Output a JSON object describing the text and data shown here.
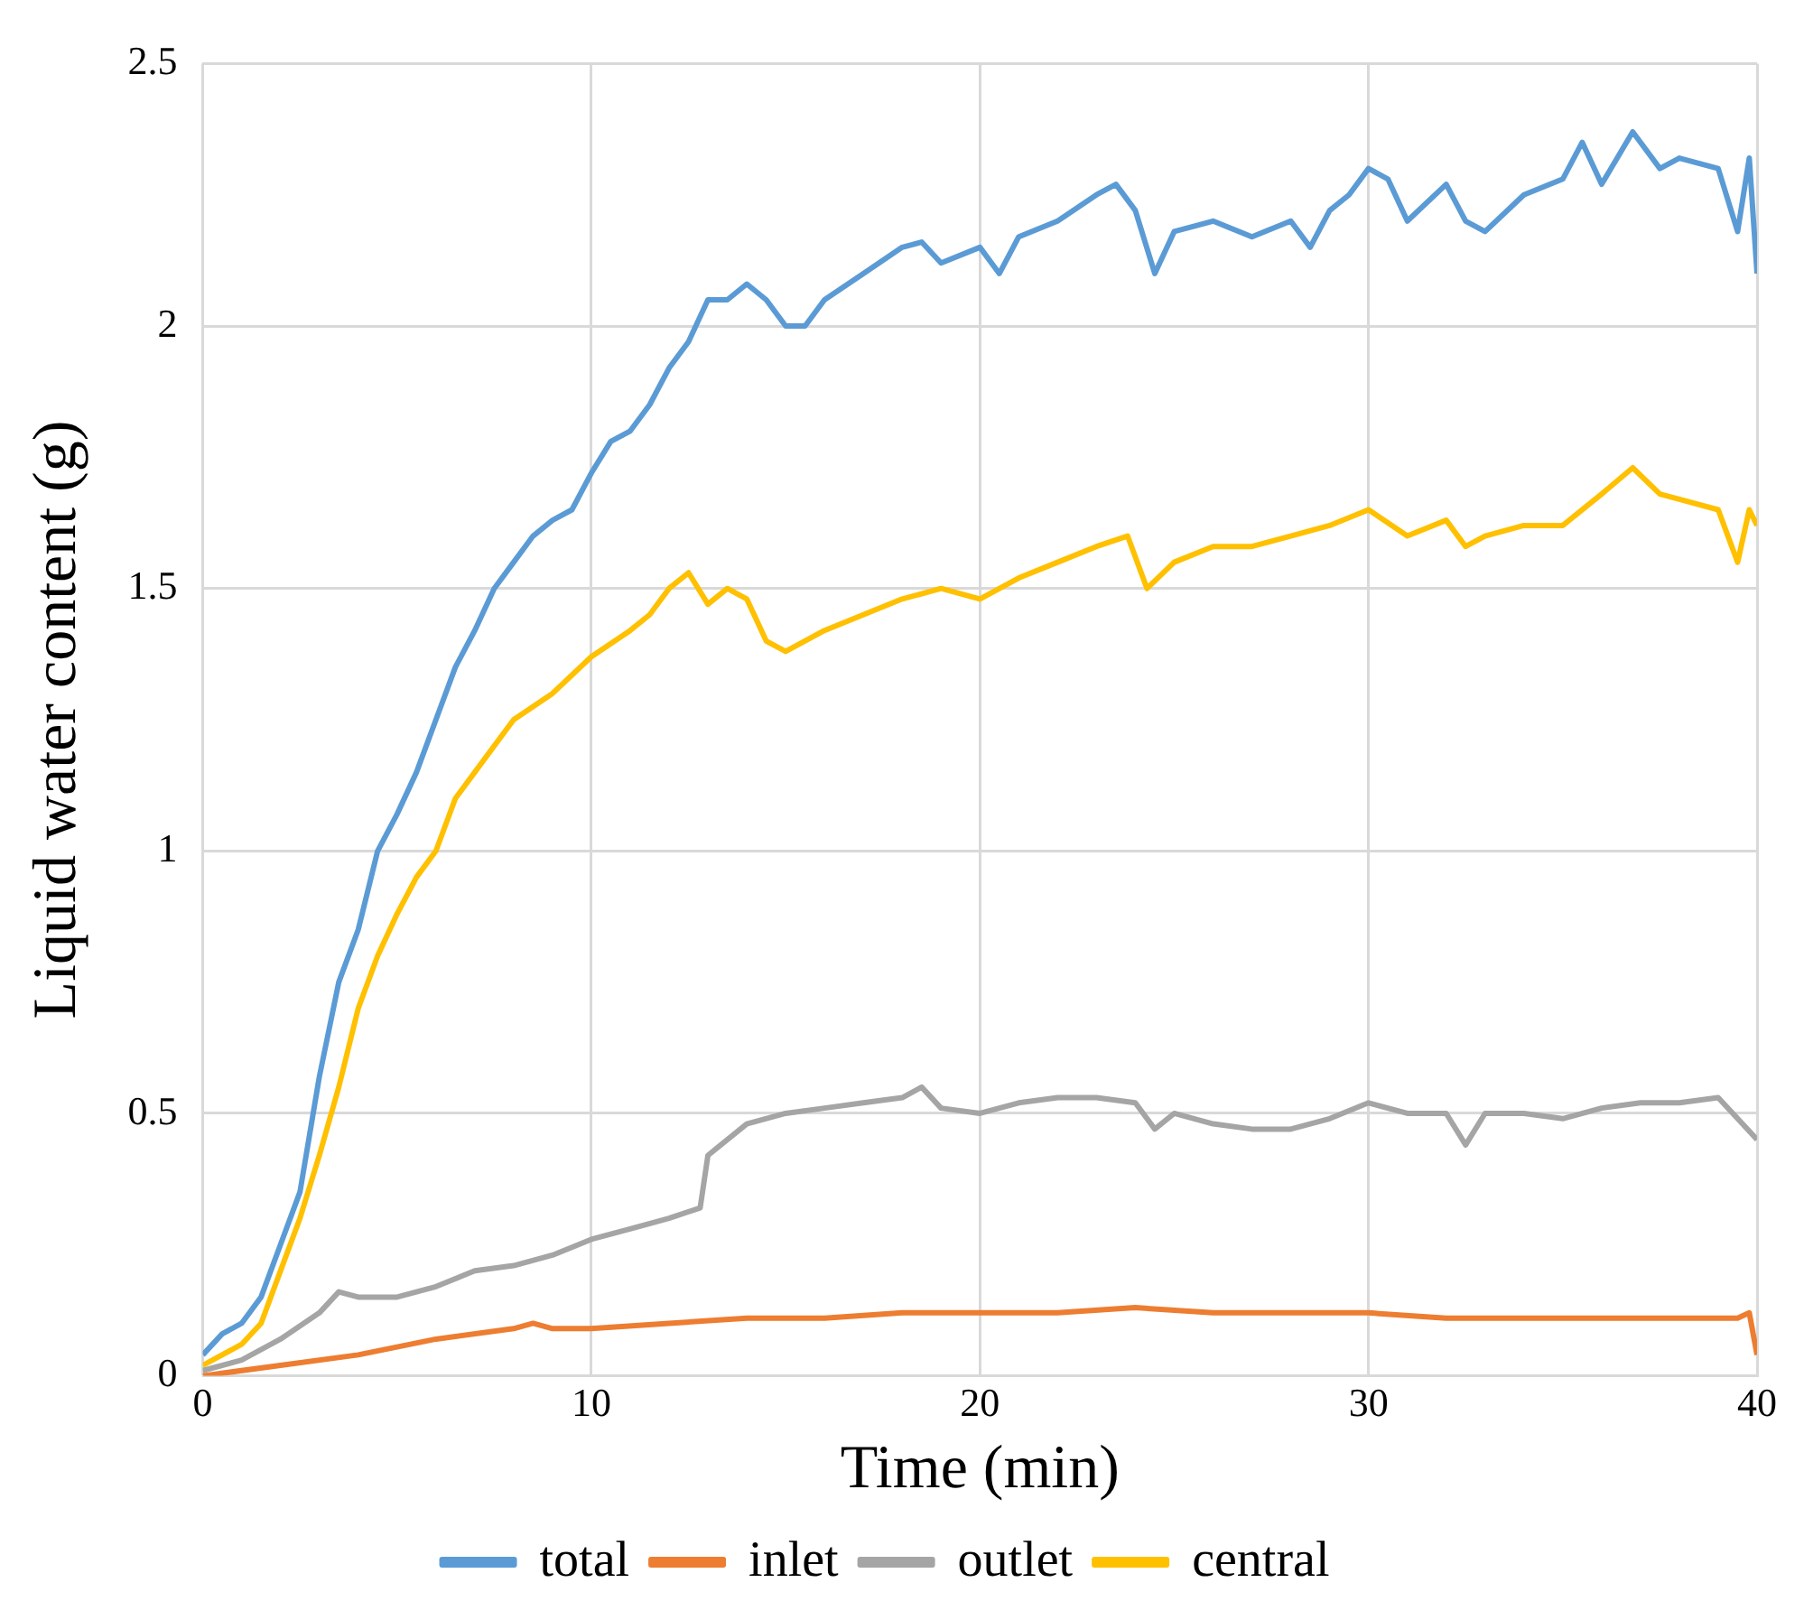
{
  "chart_data": {
    "type": "line",
    "xlabel": "Time (min)",
    "ylabel": "Liquid water content (g)",
    "xlim": [
      0,
      40
    ],
    "xticks": [
      0,
      10,
      20,
      30,
      40
    ],
    "ylim": [
      0,
      2.5
    ],
    "yticks": [
      0,
      0.5,
      1,
      1.5,
      2,
      2.5
    ],
    "grid": true,
    "legend": "bottom",
    "marker": "none",
    "line_style": "solid",
    "series": [
      {
        "name": "total",
        "color": "#5b9bd5",
        "x": [
          0,
          0.5,
          1,
          1.5,
          2,
          2.5,
          3,
          3.5,
          4,
          4.5,
          5,
          5.5,
          6,
          6.5,
          7,
          7.5,
          8,
          8.5,
          9,
          9.5,
          10,
          10.5,
          11,
          11.5,
          12,
          12.5,
          13,
          13.5,
          14,
          14.5,
          15,
          15.5,
          16,
          17,
          18,
          18.5,
          19,
          20,
          20.5,
          21,
          22,
          23,
          23.5,
          24,
          24.5,
          25,
          26,
          27,
          28,
          28.5,
          29,
          29.5,
          30,
          30.5,
          31,
          32,
          32.5,
          33,
          34,
          35,
          35.5,
          36,
          36.8,
          37.5,
          38,
          39,
          39.5,
          39.8,
          40
        ],
        "values": [
          0.04,
          0.08,
          0.1,
          0.15,
          0.25,
          0.35,
          0.57,
          0.75,
          0.85,
          1.0,
          1.07,
          1.15,
          1.25,
          1.35,
          1.42,
          1.5,
          1.55,
          1.6,
          1.63,
          1.65,
          1.72,
          1.78,
          1.8,
          1.85,
          1.92,
          1.97,
          2.05,
          2.05,
          2.08,
          2.05,
          2.0,
          2.0,
          2.05,
          2.1,
          2.15,
          2.16,
          2.12,
          2.15,
          2.1,
          2.17,
          2.2,
          2.25,
          2.27,
          2.22,
          2.1,
          2.18,
          2.2,
          2.17,
          2.2,
          2.15,
          2.22,
          2.25,
          2.3,
          2.28,
          2.2,
          2.27,
          2.2,
          2.18,
          2.25,
          2.28,
          2.35,
          2.27,
          2.37,
          2.3,
          2.32,
          2.3,
          2.18,
          2.32,
          2.1
        ]
      },
      {
        "name": "inlet",
        "color": "#ed7d31",
        "x": [
          0,
          2,
          4,
          6,
          8,
          8.5,
          9,
          10,
          12,
          14,
          16,
          18,
          20,
          22,
          24,
          26,
          28,
          30,
          32,
          34,
          36,
          38,
          39.5,
          39.8,
          40
        ],
        "values": [
          0,
          0.02,
          0.04,
          0.07,
          0.09,
          0.1,
          0.09,
          0.09,
          0.1,
          0.11,
          0.11,
          0.12,
          0.12,
          0.12,
          0.13,
          0.12,
          0.12,
          0.12,
          0.11,
          0.11,
          0.11,
          0.11,
          0.11,
          0.12,
          0.04
        ]
      },
      {
        "name": "outlet",
        "color": "#a5a5a5",
        "x": [
          0,
          1,
          2,
          3,
          3.5,
          4,
          5,
          6,
          7,
          8,
          9,
          10,
          11,
          12,
          12.8,
          13,
          14,
          15,
          16,
          17,
          18,
          18.5,
          19,
          20,
          21,
          22,
          23,
          24,
          24.5,
          25,
          26,
          27,
          28,
          29,
          30,
          31,
          32,
          32.5,
          33,
          34,
          35,
          36,
          37,
          38,
          39,
          40
        ],
        "values": [
          0.01,
          0.03,
          0.07,
          0.12,
          0.16,
          0.15,
          0.15,
          0.17,
          0.2,
          0.21,
          0.23,
          0.26,
          0.28,
          0.3,
          0.32,
          0.42,
          0.48,
          0.5,
          0.51,
          0.52,
          0.53,
          0.55,
          0.51,
          0.5,
          0.52,
          0.53,
          0.53,
          0.52,
          0.47,
          0.5,
          0.48,
          0.47,
          0.47,
          0.49,
          0.52,
          0.5,
          0.5,
          0.44,
          0.5,
          0.5,
          0.49,
          0.51,
          0.52,
          0.52,
          0.53,
          0.45
        ]
      },
      {
        "name": "central",
        "color": "#ffc000",
        "x": [
          0,
          1,
          1.5,
          2,
          2.5,
          3,
          3.5,
          4,
          4.5,
          5,
          5.5,
          6,
          6.5,
          7,
          7.5,
          8,
          9,
          10,
          11,
          11.5,
          12,
          12.5,
          13,
          13.5,
          14,
          14.5,
          15,
          16,
          17,
          18,
          19,
          20,
          21,
          22,
          23,
          23.8,
          24.3,
          25,
          26,
          27,
          28,
          29,
          30,
          31,
          32,
          32.5,
          33,
          34,
          35,
          36,
          36.8,
          37.5,
          38,
          39,
          39.5,
          39.8,
          40
        ],
        "values": [
          0.02,
          0.06,
          0.1,
          0.2,
          0.3,
          0.42,
          0.55,
          0.7,
          0.8,
          0.88,
          0.95,
          1.0,
          1.1,
          1.15,
          1.2,
          1.25,
          1.3,
          1.37,
          1.42,
          1.45,
          1.5,
          1.53,
          1.47,
          1.5,
          1.48,
          1.4,
          1.38,
          1.42,
          1.45,
          1.48,
          1.5,
          1.48,
          1.52,
          1.55,
          1.58,
          1.6,
          1.5,
          1.55,
          1.58,
          1.58,
          1.6,
          1.62,
          1.65,
          1.6,
          1.63,
          1.58,
          1.6,
          1.62,
          1.62,
          1.68,
          1.73,
          1.68,
          1.67,
          1.65,
          1.55,
          1.65,
          1.62
        ]
      }
    ]
  }
}
